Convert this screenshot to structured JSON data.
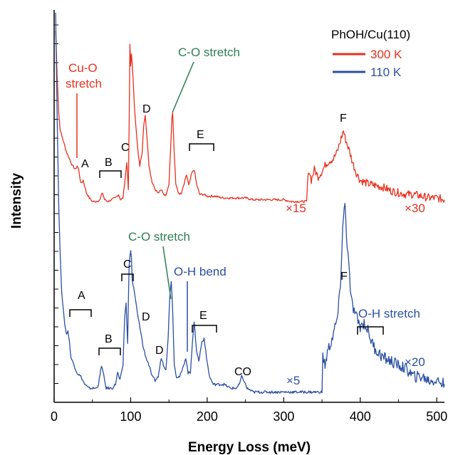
{
  "chart_data": {
    "type": "line",
    "xlabel": "Energy Loss (meV)",
    "ylabel": "Intensity",
    "xlim": [
      0,
      510
    ],
    "x_ticks": [
      "0",
      "100",
      "200",
      "300",
      "400",
      "500"
    ],
    "x_tick_values": [
      0,
      100,
      200,
      300,
      400,
      500
    ],
    "grid": false,
    "legend": {
      "title": "PhOH/Cu(110)",
      "position": "top-right",
      "items": [
        {
          "label": "300 K",
          "color": "#e8301e"
        },
        {
          "label": "110 K",
          "color": "#2a4fa3"
        }
      ]
    },
    "colors": {
      "annotation_green": "#2e7d55",
      "axis": "#000000"
    },
    "series": [
      {
        "name": "300 K",
        "color": "#e8301e",
        "points": [
          [
            2,
            0.98
          ],
          [
            4,
            0.72
          ],
          [
            6,
            0.52
          ],
          [
            8,
            0.42
          ],
          [
            12,
            0.36
          ],
          [
            16,
            0.3
          ],
          [
            20,
            0.26
          ],
          [
            24,
            0.22
          ],
          [
            28,
            0.2
          ],
          [
            30,
            0.22
          ],
          [
            32,
            0.2
          ],
          [
            35,
            0.12
          ],
          [
            38,
            0.14
          ],
          [
            42,
            0.07
          ],
          [
            46,
            0.04
          ],
          [
            50,
            0.02
          ],
          [
            55,
            0.02
          ],
          [
            60,
            0.03
          ],
          [
            63,
            0.07
          ],
          [
            66,
            0.03
          ],
          [
            70,
            0.02
          ],
          [
            75,
            0.03
          ],
          [
            80,
            0.04
          ],
          [
            84,
            0.06
          ],
          [
            87,
            0.03
          ],
          [
            90,
            0.04
          ],
          [
            93,
            0.16
          ],
          [
            95,
            0.24
          ],
          [
            97,
            0.08
          ],
          [
            98,
            0.45
          ],
          [
            99,
            0.9
          ],
          [
            100,
            0.78
          ],
          [
            101,
            0.85
          ],
          [
            102,
            0.8
          ],
          [
            103,
            0.72
          ],
          [
            105,
            0.55
          ],
          [
            108,
            0.38
          ],
          [
            110,
            0.28
          ],
          [
            112,
            0.22
          ],
          [
            115,
            0.3
          ],
          [
            117,
            0.45
          ],
          [
            119,
            0.5
          ],
          [
            121,
            0.4
          ],
          [
            124,
            0.22
          ],
          [
            128,
            0.13
          ],
          [
            132,
            0.09
          ],
          [
            136,
            0.07
          ],
          [
            140,
            0.09
          ],
          [
            143,
            0.06
          ],
          [
            146,
            0.05
          ],
          [
            150,
            0.12
          ],
          [
            152,
            0.3
          ],
          [
            154,
            0.5
          ],
          [
            155,
            0.52
          ],
          [
            157,
            0.28
          ],
          [
            159,
            0.12
          ],
          [
            162,
            0.07
          ],
          [
            166,
            0.06
          ],
          [
            170,
            0.12
          ],
          [
            173,
            0.17
          ],
          [
            176,
            0.11
          ],
          [
            180,
            0.18
          ],
          [
            183,
            0.2
          ],
          [
            186,
            0.12
          ],
          [
            190,
            0.06
          ],
          [
            195,
            0.06
          ],
          [
            200,
            0.05
          ],
          [
            210,
            0.05
          ],
          [
            220,
            0.04
          ],
          [
            230,
            0.04
          ],
          [
            240,
            0.04
          ],
          [
            250,
            0.04
          ],
          [
            260,
            0.03
          ],
          [
            270,
            0.03
          ],
          [
            280,
            0.03
          ],
          [
            290,
            0.03
          ],
          [
            300,
            0.03
          ],
          [
            310,
            0.02
          ],
          [
            320,
            0.02
          ],
          [
            330,
            0.02
          ],
          [
            331,
            0.12
          ],
          [
            333,
            0.2
          ],
          [
            336,
            0.14
          ],
          [
            340,
            0.2
          ],
          [
            345,
            0.16
          ],
          [
            350,
            0.19
          ],
          [
            355,
            0.23
          ],
          [
            360,
            0.25
          ],
          [
            365,
            0.26
          ],
          [
            370,
            0.3
          ],
          [
            374,
            0.36
          ],
          [
            378,
            0.42
          ],
          [
            380,
            0.38
          ],
          [
            383,
            0.34
          ],
          [
            386,
            0.3
          ],
          [
            390,
            0.24
          ],
          [
            395,
            0.18
          ],
          [
            400,
            0.14
          ],
          [
            410,
            0.12
          ],
          [
            420,
            0.11
          ],
          [
            430,
            0.1
          ],
          [
            440,
            0.08
          ],
          [
            450,
            0.07
          ],
          [
            460,
            0.06
          ],
          [
            470,
            0.06
          ],
          [
            480,
            0.05
          ],
          [
            490,
            0.04
          ],
          [
            500,
            0.04
          ],
          [
            510,
            0.03
          ]
        ]
      },
      {
        "name": "110 K",
        "color": "#2a4fa3",
        "points": [
          [
            2,
            1.0
          ],
          [
            4,
            0.72
          ],
          [
            6,
            0.5
          ],
          [
            8,
            0.36
          ],
          [
            10,
            0.27
          ],
          [
            13,
            0.2
          ],
          [
            16,
            0.16
          ],
          [
            18,
            0.17
          ],
          [
            20,
            0.14
          ],
          [
            22,
            0.1
          ],
          [
            26,
            0.08
          ],
          [
            30,
            0.06
          ],
          [
            35,
            0.05
          ],
          [
            40,
            0.03
          ],
          [
            45,
            0.02
          ],
          [
            50,
            0.02
          ],
          [
            55,
            0.02
          ],
          [
            58,
            0.03
          ],
          [
            62,
            0.08
          ],
          [
            64,
            0.06
          ],
          [
            68,
            0.02
          ],
          [
            72,
            0.02
          ],
          [
            76,
            0.02
          ],
          [
            80,
            0.03
          ],
          [
            83,
            0.06
          ],
          [
            86,
            0.04
          ],
          [
            90,
            0.08
          ],
          [
            92,
            0.2
          ],
          [
            94,
            0.24
          ],
          [
            96,
            0.14
          ],
          [
            98,
            0.34
          ],
          [
            100,
            0.38
          ],
          [
            101,
            0.36
          ],
          [
            102,
            0.3
          ],
          [
            104,
            0.28
          ],
          [
            107,
            0.24
          ],
          [
            110,
            0.2
          ],
          [
            113,
            0.17
          ],
          [
            116,
            0.13
          ],
          [
            120,
            0.1
          ],
          [
            124,
            0.08
          ],
          [
            128,
            0.05
          ],
          [
            132,
            0.04
          ],
          [
            136,
            0.05
          ],
          [
            140,
            0.1
          ],
          [
            143,
            0.08
          ],
          [
            146,
            0.07
          ],
          [
            149,
            0.15
          ],
          [
            151,
            0.26
          ],
          [
            153,
            0.3
          ],
          [
            155,
            0.22
          ],
          [
            157,
            0.08
          ],
          [
            160,
            0.05
          ],
          [
            164,
            0.05
          ],
          [
            168,
            0.07
          ],
          [
            172,
            0.1
          ],
          [
            175,
            0.06
          ],
          [
            178,
            0.06
          ],
          [
            181,
            0.15
          ],
          [
            183,
            0.19
          ],
          [
            186,
            0.12
          ],
          [
            189,
            0.09
          ],
          [
            193,
            0.14
          ],
          [
            196,
            0.15
          ],
          [
            199,
            0.1
          ],
          [
            203,
            0.05
          ],
          [
            208,
            0.03
          ],
          [
            215,
            0.03
          ],
          [
            222,
            0.03
          ],
          [
            230,
            0.02
          ],
          [
            238,
            0.02
          ],
          [
            242,
            0.03
          ],
          [
            245,
            0.05
          ],
          [
            248,
            0.04
          ],
          [
            252,
            0.02
          ],
          [
            260,
            0.01
          ],
          [
            270,
            0.01
          ],
          [
            280,
            0.01
          ],
          [
            290,
            0.01
          ],
          [
            300,
            0.01
          ],
          [
            310,
            0.01
          ],
          [
            320,
            0.01
          ],
          [
            330,
            0.01
          ],
          [
            340,
            0.01
          ],
          [
            350,
            0.01
          ],
          [
            351,
            0.1
          ],
          [
            354,
            0.08
          ],
          [
            358,
            0.12
          ],
          [
            362,
            0.14
          ],
          [
            366,
            0.17
          ],
          [
            370,
            0.2
          ],
          [
            374,
            0.28
          ],
          [
            377,
            0.44
          ],
          [
            380,
            0.5
          ],
          [
            382,
            0.42
          ],
          [
            385,
            0.34
          ],
          [
            388,
            0.25
          ],
          [
            392,
            0.22
          ],
          [
            396,
            0.2
          ],
          [
            400,
            0.18
          ],
          [
            405,
            0.19
          ],
          [
            410,
            0.17
          ],
          [
            415,
            0.14
          ],
          [
            420,
            0.12
          ],
          [
            430,
            0.1
          ],
          [
            440,
            0.09
          ],
          [
            450,
            0.08
          ],
          [
            460,
            0.07
          ],
          [
            470,
            0.05
          ],
          [
            480,
            0.05
          ],
          [
            490,
            0.04
          ],
          [
            500,
            0.04
          ],
          [
            510,
            0.03
          ]
        ]
      }
    ]
  },
  "annotations": {
    "red": {
      "cuo_line1": "Cu-O",
      "cuo_line2": "stretch",
      "A": "A",
      "B": "B",
      "C": "C",
      "D": "D",
      "E": "E",
      "F": "F",
      "co_stretch": "C-O stretch",
      "mult1": "×15",
      "mult2": "×30"
    },
    "blue": {
      "A": "A",
      "B": "B",
      "C": "C",
      "D1": "D",
      "D2": "D",
      "E": "E",
      "F": "F",
      "co_stretch": "C-O stretch",
      "oh_bend": "O-H bend",
      "co": "CO",
      "oh_stretch": "O-H stretch",
      "mult1": "×5",
      "mult2": "×20"
    }
  }
}
